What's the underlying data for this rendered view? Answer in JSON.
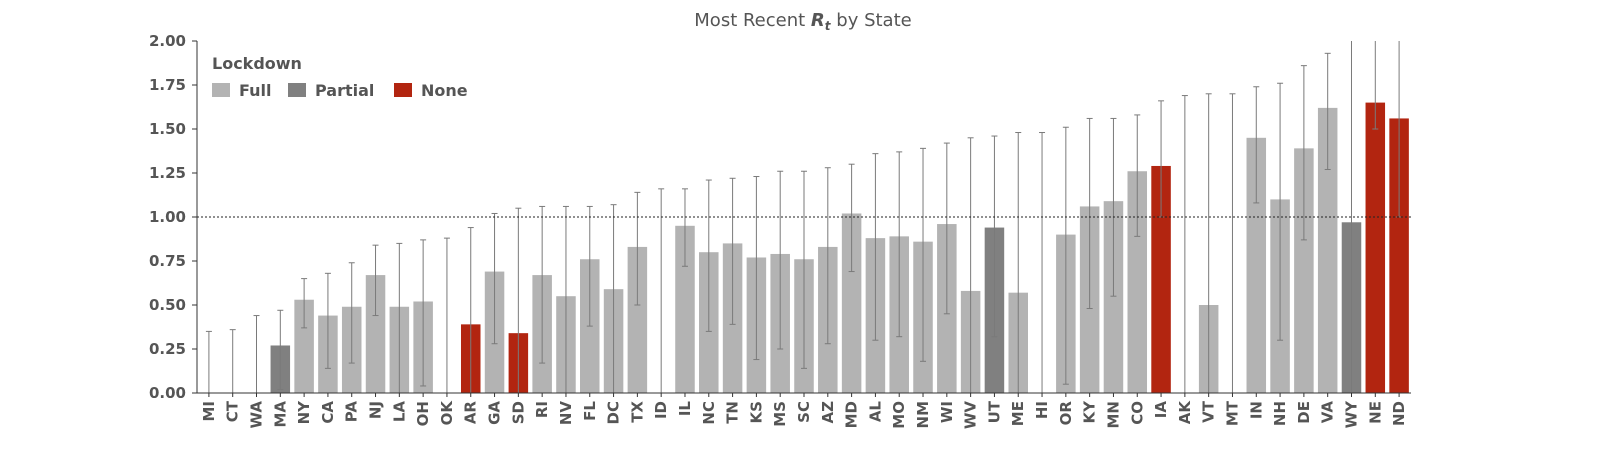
{
  "chart_data": {
    "type": "bar",
    "title": "Most Recent R_t by State",
    "title_parts": {
      "before": "Most Recent ",
      "symbol": "R",
      "subscript": "t",
      "after": " by State"
    },
    "xlabel": "",
    "ylabel": "",
    "ylim": [
      0,
      2.0
    ],
    "yticks": [
      "0.00",
      "0.25",
      "0.50",
      "0.75",
      "1.00",
      "1.25",
      "1.50",
      "1.75",
      "2.00"
    ],
    "reference_line": 1.0,
    "legend": {
      "title": "Lockdown",
      "placement": "top-left",
      "entries": [
        {
          "key": "full",
          "label": "Full",
          "color": "#b3b3b3"
        },
        {
          "key": "partial",
          "label": "Partial",
          "color": "#808080"
        },
        {
          "key": "none",
          "label": "None",
          "color": "#b22510"
        }
      ]
    },
    "categories": [
      "MI",
      "CT",
      "WA",
      "MA",
      "NY",
      "CA",
      "PA",
      "NJ",
      "LA",
      "OH",
      "OK",
      "AR",
      "GA",
      "SD",
      "RI",
      "NV",
      "FL",
      "DC",
      "TX",
      "ID",
      "IL",
      "NC",
      "TN",
      "KS",
      "MS",
      "SC",
      "AZ",
      "MD",
      "AL",
      "MO",
      "NM",
      "WI",
      "WV",
      "UT",
      "ME",
      "HI",
      "OR",
      "KY",
      "MN",
      "CO",
      "IA",
      "AK",
      "VT",
      "MT",
      "IN",
      "NH",
      "DE",
      "VA",
      "WY",
      "NE",
      "ND"
    ],
    "values": [
      0.0,
      0.0,
      0.0,
      0.27,
      0.53,
      0.44,
      0.49,
      0.67,
      0.49,
      0.52,
      0.0,
      0.39,
      0.69,
      0.34,
      0.67,
      0.55,
      0.76,
      0.59,
      0.83,
      0.0,
      0.95,
      0.8,
      0.85,
      0.77,
      0.79,
      0.76,
      0.83,
      1.02,
      0.88,
      0.89,
      0.86,
      0.96,
      0.58,
      0.94,
      0.57,
      0.0,
      0.9,
      1.06,
      1.09,
      1.26,
      1.29,
      0.0,
      0.5,
      0.0,
      1.45,
      1.1,
      1.39,
      1.62,
      0.97,
      1.65,
      1.56
    ],
    "lower": [
      0.0,
      0.0,
      0.0,
      0.02,
      0.37,
      0.14,
      0.17,
      0.44,
      0.0,
      0.04,
      0.0,
      0.0,
      0.28,
      0.0,
      0.17,
      0.0,
      0.38,
      0.0,
      0.5,
      0.0,
      0.72,
      0.35,
      0.39,
      0.19,
      0.25,
      0.14,
      0.28,
      0.69,
      0.3,
      0.32,
      0.18,
      0.45,
      0.0,
      0.32,
      0.0,
      0.0,
      0.05,
      0.48,
      0.55,
      0.89,
      1.0,
      0.0,
      0.0,
      0.0,
      1.08,
      0.3,
      0.87,
      1.27,
      0.0,
      1.5,
      1.0
    ],
    "upper": [
      0.35,
      0.36,
      0.44,
      0.47,
      0.65,
      0.68,
      0.74,
      0.84,
      0.85,
      0.87,
      0.88,
      0.94,
      1.02,
      1.05,
      1.06,
      1.06,
      1.06,
      1.07,
      1.14,
      1.16,
      1.16,
      1.21,
      1.22,
      1.23,
      1.26,
      1.26,
      1.28,
      1.3,
      1.36,
      1.37,
      1.39,
      1.42,
      1.45,
      1.46,
      1.48,
      1.48,
      1.51,
      1.56,
      1.56,
      1.58,
      1.66,
      1.69,
      1.7,
      1.7,
      1.74,
      1.76,
      1.86,
      1.93,
      2.0,
      2.0,
      2.0
    ],
    "lockdown": [
      "full",
      "full",
      "full",
      "partial",
      "full",
      "full",
      "full",
      "full",
      "full",
      "full",
      "full",
      "none",
      "full",
      "none",
      "full",
      "full",
      "full",
      "full",
      "full",
      "full",
      "full",
      "full",
      "full",
      "full",
      "full",
      "full",
      "full",
      "full",
      "full",
      "full",
      "full",
      "full",
      "full",
      "partial",
      "full",
      "full",
      "full",
      "full",
      "full",
      "full",
      "none",
      "full",
      "full",
      "full",
      "full",
      "full",
      "full",
      "full",
      "partial",
      "none",
      "none"
    ],
    "grid": false
  }
}
